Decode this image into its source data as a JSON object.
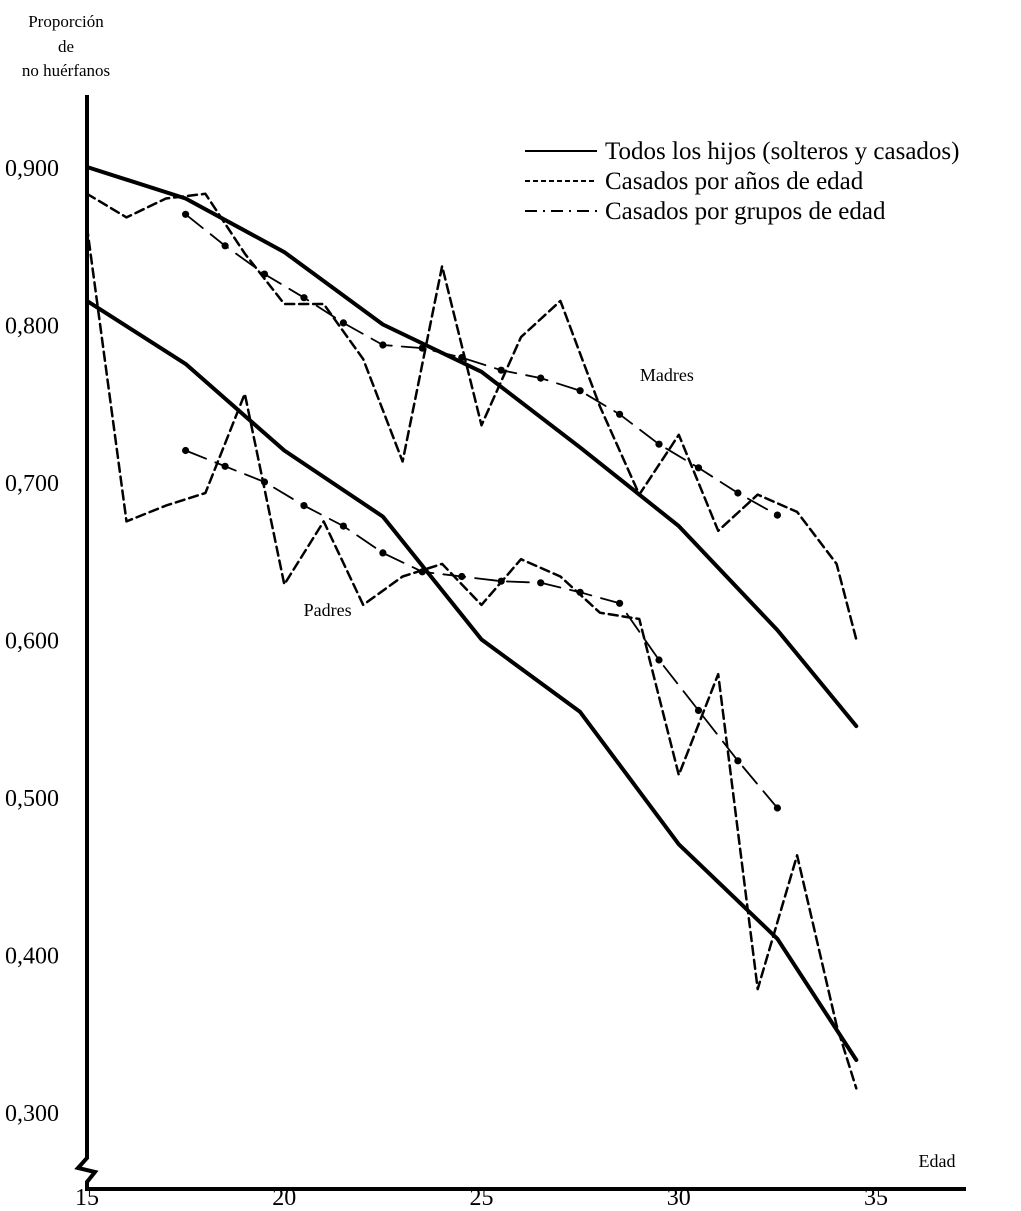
{
  "chart_data": {
    "type": "line",
    "ylabel_lines": [
      "Proporción",
      "de",
      "no huérfanos"
    ],
    "xlabel": "Edad",
    "xlim": [
      15,
      35
    ],
    "ylim": [
      0.3,
      0.9
    ],
    "x_ticks": [
      15,
      20,
      25,
      30,
      35
    ],
    "x_tick_labels": [
      "15",
      "20",
      "25",
      "30",
      "35"
    ],
    "y_ticks": [
      0.3,
      0.4,
      0.5,
      0.6,
      0.7,
      0.8,
      0.9
    ],
    "y_tick_labels": [
      "0,300",
      "0,400",
      "0,500",
      "0,600",
      "0,700",
      "0,800",
      "0,900"
    ],
    "legend": {
      "position": "top-right",
      "entries": [
        {
          "label": "Todos los hijos (solteros y casados)",
          "style": "solid"
        },
        {
          "label": "Casados por años de edad",
          "style": "dashed"
        },
        {
          "label": "Casados por grupos de edad",
          "style": "dashdot"
        }
      ]
    },
    "annotations": [
      {
        "text": "Madres",
        "x": 29.7,
        "y": 0.764
      },
      {
        "text": "Padres",
        "x": 21.1,
        "y": 0.615
      }
    ],
    "series": [
      {
        "group": "Madres",
        "style": "solid",
        "x": [
          15,
          17.5,
          20,
          22.5,
          25,
          27.5,
          30,
          32.5,
          34.5
        ],
        "y": [
          0.9,
          0.88,
          0.846,
          0.8,
          0.77,
          0.722,
          0.672,
          0.606,
          0.545
        ]
      },
      {
        "group": "Madres",
        "style": "dashed",
        "x": [
          15,
          16,
          17,
          18,
          19,
          20,
          21,
          22,
          23,
          24,
          25,
          26,
          27,
          28,
          29,
          30,
          31,
          32,
          33,
          34,
          34.5
        ],
        "y": [
          0.883,
          0.868,
          0.88,
          0.883,
          0.845,
          0.813,
          0.813,
          0.778,
          0.713,
          0.837,
          0.736,
          0.792,
          0.815,
          0.748,
          0.692,
          0.73,
          0.669,
          0.692,
          0.681,
          0.648,
          0.6
        ]
      },
      {
        "group": "Madres",
        "style": "dashdot",
        "x": [
          17.5,
          18.5,
          19.5,
          20.5,
          21.5,
          22.5,
          23.5,
          24.5,
          25.5,
          26.5,
          27.5,
          28.5,
          29.5,
          30.5,
          31.5,
          32.5
        ],
        "y": [
          0.87,
          0.85,
          0.832,
          0.817,
          0.801,
          0.787,
          0.785,
          0.779,
          0.771,
          0.766,
          0.758,
          0.743,
          0.724,
          0.709,
          0.693,
          0.679
        ]
      },
      {
        "group": "Padres",
        "style": "solid",
        "x": [
          15,
          17.5,
          20,
          22.5,
          25,
          27.5,
          30,
          32.5,
          34.5
        ],
        "y": [
          0.815,
          0.775,
          0.72,
          0.678,
          0.6,
          0.554,
          0.47,
          0.41,
          0.333
        ]
      },
      {
        "group": "Padres",
        "style": "dashed",
        "x": [
          15,
          16,
          17,
          18,
          19,
          20,
          21,
          22,
          23,
          24,
          25,
          26,
          27,
          28,
          29,
          30,
          31,
          32,
          33,
          34,
          34.5
        ],
        "y": [
          0.862,
          0.675,
          0.685,
          0.693,
          0.756,
          0.635,
          0.675,
          0.622,
          0.64,
          0.648,
          0.622,
          0.651,
          0.64,
          0.617,
          0.613,
          0.514,
          0.578,
          0.378,
          0.463,
          0.355,
          0.315
        ]
      },
      {
        "group": "Padres",
        "style": "dashdot",
        "x": [
          17.5,
          18.5,
          19.5,
          20.5,
          21.5,
          22.5,
          23.5,
          24.5,
          25.5,
          26.5,
          27.5,
          28.5,
          29.5,
          30.5,
          31.5,
          32.5
        ],
        "y": [
          0.72,
          0.71,
          0.7,
          0.685,
          0.672,
          0.655,
          0.643,
          0.64,
          0.637,
          0.636,
          0.63,
          0.623,
          0.587,
          0.555,
          0.523,
          0.493
        ]
      }
    ]
  }
}
